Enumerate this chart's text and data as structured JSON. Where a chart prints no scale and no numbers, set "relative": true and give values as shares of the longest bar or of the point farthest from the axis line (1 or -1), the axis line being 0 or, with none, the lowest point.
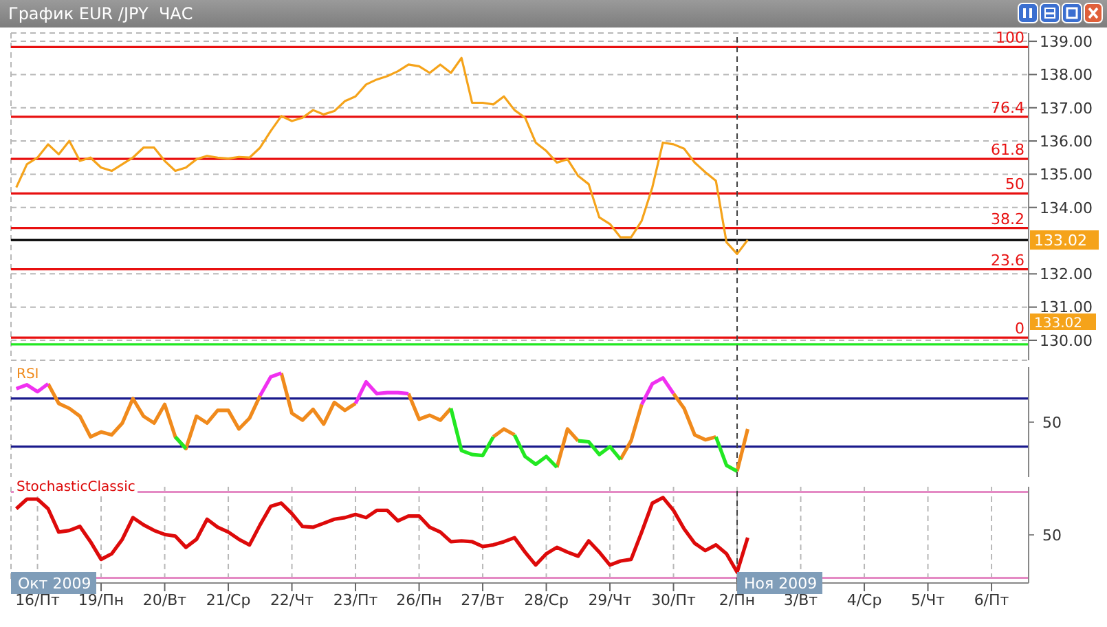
{
  "chart_data": [
    {
      "type": "line",
      "title": "График EUR /JPY  ЧАС",
      "tick_labels": "y",
      "grid": true,
      "categories": [
        null,
        null,
        "16/Пт",
        null,
        null,
        null,
        null,
        null,
        "19/Пн",
        null,
        null,
        null,
        null,
        null,
        "20/Вт",
        null,
        null,
        null,
        null,
        null,
        "21/Ср",
        null,
        null,
        null,
        null,
        null,
        "22/Чт",
        null,
        null,
        null,
        null,
        null,
        "23/Пт",
        null,
        null,
        null,
        null,
        null,
        "26/Пн",
        null,
        null,
        null,
        null,
        null,
        "27/Вт",
        null,
        null,
        null,
        null,
        null,
        "28/Ср",
        null,
        null,
        null,
        null,
        null,
        "29/Чт",
        null,
        null,
        null,
        null,
        null,
        "30/Пт",
        null,
        null,
        null,
        null,
        null,
        "2/Пн",
        null,
        null,
        null,
        null,
        null,
        "3/Вт",
        null,
        null,
        null,
        null,
        null,
        "4/Ср",
        null,
        null,
        null,
        null,
        null,
        "5/Чт",
        null,
        null,
        null,
        null,
        null,
        "6/Пт",
        null,
        null,
        null
      ],
      "ylim": [
        129.4,
        139.25
      ],
      "yticks": [
        {
          "value": 130,
          "label": "130.00"
        },
        {
          "value": 131,
          "label": "131.00"
        },
        {
          "value": 132,
          "label": "132.00"
        },
        {
          "value": 134,
          "label": "134.00"
        },
        {
          "value": 135,
          "label": "135.00"
        },
        {
          "value": 136,
          "label": "136.00"
        },
        {
          "value": 137,
          "label": "137.00"
        },
        {
          "value": 138,
          "label": "138.00"
        },
        {
          "value": 139,
          "label": "139.00"
        }
      ],
      "series": [
        {
          "color": "#f5a31a",
          "values": [
            134.6,
            135.3,
            135.5,
            135.9,
            135.6,
            136.0,
            135.4,
            135.5,
            135.2,
            135.1,
            135.3,
            135.5,
            135.8,
            135.8,
            135.4,
            135.1,
            135.2,
            135.45,
            135.55,
            135.5,
            135.47,
            135.52,
            135.5,
            135.8,
            136.3,
            136.75,
            136.6,
            136.7,
            136.93,
            136.8,
            136.9,
            137.2,
            137.34,
            137.7,
            137.85,
            137.95,
            138.1,
            138.3,
            138.25,
            138.05,
            138.3,
            138.05,
            138.5,
            137.15,
            137.15,
            137.1,
            137.34,
            136.93,
            136.7,
            135.95,
            135.7,
            135.35,
            135.45,
            134.95,
            134.7,
            133.7,
            133.5,
            133.1,
            133.1,
            133.6,
            134.6,
            135.95,
            135.9,
            135.77,
            135.35,
            135.06,
            134.8,
            132.95,
            132.6,
            133.02,
            null,
            null,
            null,
            null,
            null,
            null,
            null,
            null,
            null,
            null,
            null,
            null,
            null,
            null,
            null,
            null,
            null,
            null,
            null,
            null,
            null,
            null,
            null,
            null,
            null,
            null
          ]
        }
      ],
      "ref_lines": [
        {
          "axis": "y",
          "value": 138.83,
          "color": "#e81010"
        },
        {
          "axis": "y",
          "value": 136.73,
          "color": "#e81010"
        },
        {
          "axis": "y",
          "value": 135.46,
          "color": "#e81010"
        },
        {
          "axis": "y",
          "value": 134.42,
          "color": "#e81010"
        },
        {
          "axis": "y",
          "value": 133.38,
          "color": "#e81010"
        },
        {
          "axis": "y",
          "value": 132.14,
          "color": "#e81010"
        },
        {
          "axis": "y",
          "value": 130.08,
          "color": "#e81010"
        },
        {
          "axis": "y",
          "value": 133.02,
          "label": "133.02",
          "color": "#000000"
        },
        {
          "axis": "y",
          "value": 129.88,
          "color": "#22e822"
        },
        {
          "axis": "x",
          "value": "2/Пн",
          "color": "#404040",
          "line_style": "dashed"
        }
      ],
      "annotations": [
        "100",
        "76.4",
        "61.8",
        "50",
        "38.2",
        "23.6",
        "0",
        "133.02"
      ]
    },
    {
      "type": "line",
      "title": "RSI",
      "relative": true,
      "tick_labels": false,
      "grid": "x",
      "categories": [
        null,
        null,
        "16/Пт",
        null,
        null,
        null,
        null,
        null,
        "19/Пн",
        null,
        null,
        null,
        null,
        null,
        "20/Вт",
        null,
        null,
        null,
        null,
        null,
        "21/Ср",
        null,
        null,
        null,
        null,
        null,
        "22/Чт",
        null,
        null,
        null,
        null,
        null,
        "23/Пт",
        null,
        null,
        null,
        null,
        null,
        "26/Пн",
        null,
        null,
        null,
        null,
        null,
        "27/Вт",
        null,
        null,
        null,
        null,
        null,
        "28/Ср",
        null,
        null,
        null,
        null,
        null,
        "29/Чт",
        null,
        null,
        null,
        null,
        null,
        "30/Пт",
        null,
        null,
        null,
        null,
        null,
        "2/Пн",
        null,
        null,
        null,
        null,
        null,
        "3/Вт",
        null,
        null,
        null,
        null,
        null,
        "4/Ср",
        null,
        null,
        null,
        null,
        null,
        "5/Чт",
        null,
        null,
        null,
        null,
        null,
        "6/Пт",
        null,
        null,
        null
      ],
      "series": [
        {
          "color": "#f08a1c",
          "values": [
            null,
            null,
            null,
            0.89,
            0.69,
            0.64,
            0.56,
            0.35,
            0.4,
            0.37,
            0.49,
            0.74,
            0.56,
            0.49,
            0.68,
            0.35,
            0.23,
            0.56,
            0.49,
            0.62,
            0.62,
            0.43,
            0.54,
            0.77,
            null,
            1,
            0.59,
            0.52,
            0.63,
            0.48,
            0.7,
            0.62,
            0.69,
            null,
            null,
            null,
            null,
            0.79,
            0.53,
            0.57,
            0.52,
            0.64,
            null,
            null,
            null,
            0.35,
            0.43,
            0.37,
            null,
            null,
            null,
            0.04,
            0.43,
            0.31,
            null,
            null,
            null,
            0.12,
            0.31,
            0.68,
            null,
            null,
            0.79,
            0.64,
            0.37,
            0.32,
            0.35,
            null,
            0,
            0.43,
            null,
            null,
            null,
            null,
            null,
            null,
            null,
            null,
            null,
            null,
            null,
            null,
            null,
            null,
            null,
            null,
            null,
            null,
            null,
            null,
            null,
            null,
            null,
            null,
            null,
            null
          ]
        },
        {
          "color": "#f030f0",
          "values": [
            0.84,
            0.88,
            0.81,
            0.89,
            null,
            null,
            null,
            null,
            null,
            null,
            null,
            null,
            null,
            null,
            null,
            null,
            null,
            null,
            null,
            null,
            null,
            null,
            null,
            0.77,
            0.96,
            1,
            null,
            null,
            null,
            null,
            null,
            null,
            0.69,
            0.91,
            0.79,
            0.8,
            0.8,
            0.79,
            null,
            null,
            null,
            null,
            null,
            null,
            null,
            null,
            null,
            null,
            null,
            null,
            null,
            null,
            null,
            null,
            null,
            null,
            null,
            null,
            null,
            0.68,
            0.89,
            0.95,
            0.79,
            null,
            null,
            null,
            null,
            null,
            null,
            null,
            null,
            null,
            null,
            null,
            null,
            null,
            null,
            null,
            null,
            null,
            null,
            null,
            null,
            null,
            null,
            null,
            null,
            null,
            null,
            null,
            null,
            null,
            null,
            null,
            null,
            null
          ]
        },
        {
          "color": "#22e822",
          "values": [
            null,
            null,
            null,
            null,
            null,
            null,
            null,
            null,
            null,
            null,
            null,
            null,
            null,
            null,
            null,
            0.35,
            0.23,
            null,
            null,
            null,
            null,
            null,
            null,
            null,
            null,
            null,
            null,
            null,
            null,
            null,
            null,
            null,
            null,
            null,
            null,
            null,
            null,
            null,
            null,
            null,
            null,
            0.64,
            0.21,
            0.17,
            0.16,
            0.35,
            null,
            0.37,
            0.15,
            0.07,
            0.15,
            0.04,
            null,
            0.31,
            0.3,
            0.17,
            0.25,
            0.12,
            null,
            null,
            null,
            null,
            null,
            null,
            null,
            null,
            0.35,
            0.06,
            0,
            null,
            null,
            null,
            null,
            null,
            null,
            null,
            null,
            null,
            null,
            null,
            null,
            null,
            null,
            null,
            null,
            null,
            null,
            null,
            null,
            null,
            null,
            null,
            null,
            null,
            null,
            null
          ]
        }
      ],
      "ref_lines": [
        {
          "axis": "y",
          "value": 0.74,
          "color": "#1a1a8c"
        },
        {
          "axis": "y",
          "value": 0.25,
          "color": "#1a1a8c"
        },
        {
          "axis": "x",
          "value": "2/Пн",
          "color": "#404040",
          "line_style": "dashed"
        }
      ],
      "annotations": [
        "50"
      ]
    },
    {
      "type": "line",
      "title": "StochasticClassic",
      "relative": true,
      "grid": "x",
      "categories": [
        null,
        null,
        "16/Пт",
        null,
        null,
        null,
        null,
        null,
        "19/Пн",
        null,
        null,
        null,
        null,
        null,
        "20/Вт",
        null,
        null,
        null,
        null,
        null,
        "21/Ср",
        null,
        null,
        null,
        null,
        null,
        "22/Чт",
        null,
        null,
        null,
        null,
        null,
        "23/Пт",
        null,
        null,
        null,
        null,
        null,
        "26/Пн",
        null,
        null,
        null,
        null,
        null,
        "27/Вт",
        null,
        null,
        null,
        null,
        null,
        "28/Ср",
        null,
        null,
        null,
        null,
        null,
        "29/Чт",
        null,
        null,
        null,
        null,
        null,
        "30/Пт",
        null,
        null,
        null,
        null,
        null,
        "2/Пн",
        null,
        null,
        null,
        null,
        null,
        "3/Вт",
        null,
        null,
        null,
        null,
        null,
        "4/Ср",
        null,
        null,
        null,
        null,
        null,
        "5/Чт",
        null,
        null,
        null,
        null,
        null,
        "6/Пт",
        null,
        null,
        null
      ],
      "series": [
        {
          "color": "#dd0a0a",
          "values": [
            0.86,
            0.98,
            0.98,
            0.86,
            0.57,
            0.59,
            0.64,
            0.45,
            0.23,
            0.3,
            0.48,
            0.75,
            0.66,
            0.59,
            0.54,
            0.52,
            0.38,
            0.48,
            0.73,
            0.63,
            0.57,
            0.48,
            0.41,
            0.66,
            0.89,
            0.93,
            0.8,
            0.64,
            0.63,
            0.68,
            0.73,
            0.75,
            0.79,
            0.75,
            0.84,
            0.84,
            0.71,
            0.77,
            0.77,
            0.63,
            0.57,
            0.45,
            0.46,
            0.45,
            0.39,
            0.41,
            0.45,
            0.5,
            0.32,
            0.16,
            0.3,
            0.38,
            0.32,
            0.27,
            0.46,
            0.32,
            0.16,
            0.21,
            0.23,
            0.57,
            0.93,
            1,
            0.84,
            0.61,
            0.43,
            0.34,
            0.41,
            0.3,
            0.07,
            0.5,
            null,
            null,
            null,
            null,
            null,
            null,
            null,
            null,
            null,
            null,
            null,
            null,
            null,
            null,
            null,
            null,
            null,
            null,
            null,
            null,
            null,
            null,
            null,
            null,
            null,
            null
          ]
        }
      ],
      "ref_lines": [
        {
          "axis": "y",
          "value": 1.07,
          "color": "#e48ac4"
        },
        {
          "axis": "y",
          "value": 0,
          "color": "#e48ac4"
        },
        {
          "axis": "x",
          "value": "2/Пн",
          "color": "#404040",
          "line_style": "dashed"
        }
      ],
      "annotations": [
        "50",
        "Окт 2009",
        "Ноя 2009"
      ]
    }
  ]
}
